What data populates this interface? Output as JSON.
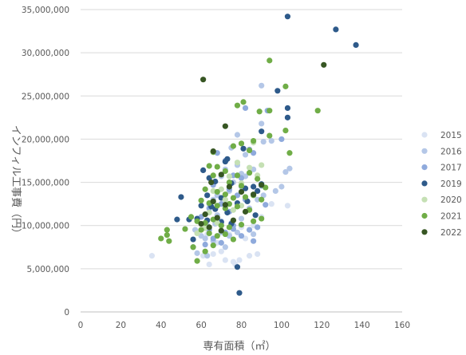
{
  "chart_data": {
    "type": "scatter",
    "xlabel": "専有面積（㎡）",
    "ylabel": "インフィル工事費（円）",
    "xlim": [
      0,
      160
    ],
    "ylim": [
      0,
      35000000
    ],
    "x_ticks": [
      0,
      20,
      40,
      60,
      80,
      100,
      120,
      140,
      160
    ],
    "y_ticks": [
      0,
      5000000,
      10000000,
      15000000,
      20000000,
      25000000,
      30000000,
      35000000
    ],
    "y_tick_labels": [
      "0",
      "5,000,000",
      "10,000,000",
      "15,000,000",
      "20,000,000",
      "25,000,000",
      "30,000,000",
      "35,000,000"
    ],
    "grid": "horizontal",
    "legend_position": "right",
    "series": [
      {
        "name": "2015",
        "color": "#dae3f3",
        "points": [
          [
            35.5,
            6500000
          ],
          [
            61,
            6500000
          ],
          [
            64,
            5500000
          ],
          [
            70,
            7000000
          ],
          [
            72,
            6000000
          ],
          [
            76,
            5800000
          ],
          [
            77,
            5500000
          ],
          [
            79,
            6000000
          ],
          [
            82,
            8500000
          ],
          [
            84,
            6500000
          ],
          [
            88,
            6700000
          ],
          [
            66,
            6700000
          ],
          [
            68,
            8000000
          ],
          [
            90,
            11000000
          ],
          [
            95,
            12500000
          ],
          [
            103,
            12300000
          ],
          [
            74,
            9000000
          ],
          [
            80,
            9800000
          ],
          [
            86,
            10000000
          ],
          [
            63,
            9000000
          ]
        ]
      },
      {
        "name": "2016",
        "color": "#b4c7e7",
        "points": [
          [
            90,
            26200000
          ],
          [
            90,
            21800000
          ],
          [
            91,
            19700000
          ],
          [
            95,
            19800000
          ],
          [
            102,
            16200000
          ],
          [
            100,
            14500000
          ],
          [
            97,
            14000000
          ],
          [
            86,
            16500000
          ],
          [
            82,
            15700000
          ],
          [
            78,
            20500000
          ],
          [
            75,
            19000000
          ],
          [
            78,
            17000000
          ],
          [
            80,
            16000000
          ],
          [
            72,
            16500000
          ],
          [
            70,
            15700000
          ],
          [
            76,
            15000000
          ],
          [
            80,
            14500000
          ],
          [
            74,
            14000000
          ],
          [
            68,
            13500000
          ],
          [
            66,
            13000000
          ],
          [
            64,
            12500000
          ],
          [
            72,
            12000000
          ],
          [
            78,
            12500000
          ],
          [
            84,
            12000000
          ],
          [
            88,
            13000000
          ],
          [
            91,
            13500000
          ],
          [
            70,
            10500000
          ],
          [
            75,
            10300000
          ],
          [
            80,
            10800000
          ],
          [
            63,
            10000000
          ],
          [
            67,
            10200000
          ],
          [
            62,
            8500000
          ],
          [
            66,
            8200000
          ],
          [
            70,
            9200000
          ],
          [
            74,
            8800000
          ],
          [
            78,
            9200000
          ],
          [
            86,
            9000000
          ],
          [
            57,
            9500000
          ],
          [
            60,
            8800000
          ],
          [
            63,
            6500000
          ],
          [
            72,
            7500000
          ],
          [
            58,
            6800000
          ],
          [
            68,
            11200000
          ],
          [
            104,
            16600000
          ],
          [
            82,
            18200000
          ]
        ]
      },
      {
        "name": "2017",
        "color": "#8faadc",
        "points": [
          [
            82,
            23600000
          ],
          [
            93,
            23300000
          ],
          [
            100,
            20000000
          ],
          [
            84,
            18800000
          ],
          [
            86,
            18400000
          ],
          [
            68,
            18400000
          ],
          [
            72,
            17500000
          ],
          [
            76,
            15800000
          ],
          [
            80,
            15500000
          ],
          [
            66,
            14700000
          ],
          [
            74,
            14200000
          ],
          [
            78,
            13500000
          ],
          [
            82,
            13000000
          ],
          [
            70,
            12500000
          ],
          [
            64,
            12000000
          ],
          [
            60,
            11000000
          ],
          [
            68,
            10800000
          ],
          [
            76,
            10000000
          ],
          [
            84,
            9500000
          ],
          [
            88,
            9800000
          ],
          [
            72,
            9200000
          ],
          [
            80,
            8800000
          ],
          [
            66,
            8500000
          ],
          [
            70,
            8000000
          ],
          [
            62,
            7800000
          ],
          [
            86,
            8200000
          ],
          [
            56,
            7500000
          ],
          [
            76,
            9600000
          ],
          [
            92,
            12400000
          ],
          [
            90,
            14600000
          ],
          [
            64,
            9500000
          ],
          [
            74,
            11600000
          ]
        ]
      },
      {
        "name": "2019",
        "color": "#2e5a8a",
        "points": [
          [
            103,
            34200000
          ],
          [
            127,
            32700000
          ],
          [
            137,
            30900000
          ],
          [
            98,
            25600000
          ],
          [
            103,
            23600000
          ],
          [
            103,
            22500000
          ],
          [
            90,
            20900000
          ],
          [
            81,
            18900000
          ],
          [
            73,
            17700000
          ],
          [
            72,
            17400000
          ],
          [
            61,
            16400000
          ],
          [
            64,
            15500000
          ],
          [
            67,
            15100000
          ],
          [
            75,
            14900000
          ],
          [
            82,
            14300000
          ],
          [
            86,
            14500000
          ],
          [
            88,
            14000000
          ],
          [
            63,
            13500000
          ],
          [
            70,
            13200000
          ],
          [
            78,
            12600000
          ],
          [
            60,
            12300000
          ],
          [
            67,
            11900000
          ],
          [
            73,
            11500000
          ],
          [
            50,
            13300000
          ],
          [
            48,
            10700000
          ],
          [
            54,
            10700000
          ],
          [
            58,
            10800000
          ],
          [
            63,
            10600000
          ],
          [
            70,
            10400000
          ],
          [
            75,
            10200000
          ],
          [
            87,
            11200000
          ],
          [
            83,
            12800000
          ],
          [
            90,
            14800000
          ],
          [
            56,
            8400000
          ],
          [
            78,
            5200000
          ],
          [
            79,
            2200000
          ],
          [
            65,
            12200000
          ]
        ]
      },
      {
        "name": "2020",
        "color": "#c5e0b4",
        "points": [
          [
            86,
            19600000
          ],
          [
            78,
            17300000
          ],
          [
            84,
            16700000
          ],
          [
            88,
            15800000
          ],
          [
            74,
            15700000
          ],
          [
            70,
            14200000
          ],
          [
            66,
            14000000
          ],
          [
            72,
            13000000
          ],
          [
            80,
            12300000
          ],
          [
            64,
            11500000
          ],
          [
            76,
            11800000
          ],
          [
            68,
            10300000
          ],
          [
            62,
            9700000
          ],
          [
            58,
            9100000
          ],
          [
            80,
            14900000
          ],
          [
            90,
            17000000
          ]
        ]
      },
      {
        "name": "2021",
        "color": "#70ad47",
        "points": [
          [
            94,
            29100000
          ],
          [
            102,
            26100000
          ],
          [
            78,
            23900000
          ],
          [
            81,
            24300000
          ],
          [
            89,
            23200000
          ],
          [
            94,
            23300000
          ],
          [
            118,
            23300000
          ],
          [
            102,
            21000000
          ],
          [
            94,
            20400000
          ],
          [
            86,
            19800000
          ],
          [
            80,
            19500000
          ],
          [
            84,
            18700000
          ],
          [
            76,
            19200000
          ],
          [
            104,
            18400000
          ],
          [
            66,
            18500000
          ],
          [
            68,
            16800000
          ],
          [
            72,
            16300000
          ],
          [
            78,
            15800000
          ],
          [
            84,
            16100000
          ],
          [
            88,
            15400000
          ],
          [
            66,
            15800000
          ],
          [
            74,
            15000000
          ],
          [
            80,
            14600000
          ],
          [
            62,
            14200000
          ],
          [
            68,
            13900000
          ],
          [
            72,
            13600000
          ],
          [
            76,
            13200000
          ],
          [
            82,
            13300000
          ],
          [
            86,
            13500000
          ],
          [
            90,
            13000000
          ],
          [
            60,
            12900000
          ],
          [
            64,
            12600000
          ],
          [
            68,
            12300000
          ],
          [
            72,
            12000000
          ],
          [
            78,
            12200000
          ],
          [
            84,
            11800000
          ],
          [
            90,
            10800000
          ],
          [
            55,
            11000000
          ],
          [
            58,
            10500000
          ],
          [
            62,
            10300000
          ],
          [
            66,
            10700000
          ],
          [
            70,
            10000000
          ],
          [
            74,
            9800000
          ],
          [
            80,
            10100000
          ],
          [
            86,
            10500000
          ],
          [
            60,
            9500000
          ],
          [
            64,
            9100000
          ],
          [
            68,
            8800000
          ],
          [
            72,
            9000000
          ],
          [
            76,
            8400000
          ],
          [
            40,
            8500000
          ],
          [
            43,
            8900000
          ],
          [
            43,
            9500000
          ],
          [
            44,
            8200000
          ],
          [
            52,
            9600000
          ],
          [
            56,
            7500000
          ],
          [
            58,
            5900000
          ],
          [
            62,
            7000000
          ],
          [
            66,
            7700000
          ],
          [
            74,
            12500000
          ],
          [
            92,
            14400000
          ],
          [
            64,
            16900000
          ]
        ]
      },
      {
        "name": "2022",
        "color": "#375623",
        "points": [
          [
            61,
            26900000
          ],
          [
            121,
            28600000
          ],
          [
            72,
            21500000
          ],
          [
            66,
            18600000
          ],
          [
            65,
            15000000
          ],
          [
            70,
            15900000
          ],
          [
            74,
            14500000
          ],
          [
            80,
            13900000
          ],
          [
            66,
            12800000
          ],
          [
            72,
            12400000
          ],
          [
            62,
            11300000
          ],
          [
            68,
            10900000
          ],
          [
            76,
            10600000
          ],
          [
            60,
            10200000
          ],
          [
            64,
            9800000
          ],
          [
            70,
            9400000
          ],
          [
            86,
            13600000
          ],
          [
            90,
            14700000
          ],
          [
            82,
            11600000
          ]
        ]
      }
    ]
  }
}
